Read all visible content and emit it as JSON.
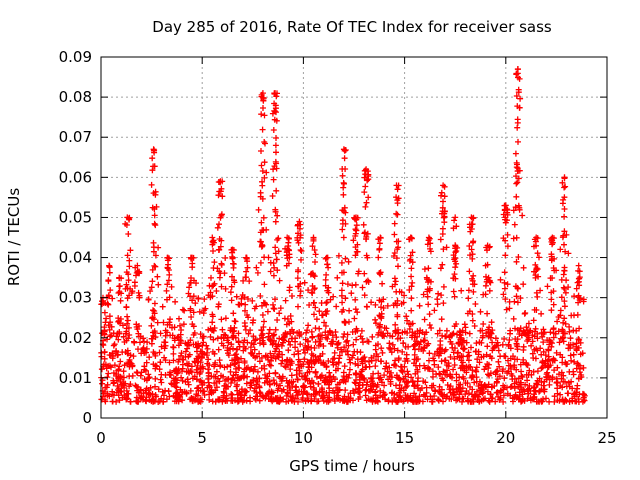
{
  "chart_data": {
    "type": "scatter",
    "title": "Day 285 of 2016, Rate Of TEC Index for receiver sass",
    "xlabel": "GPS time / hours",
    "ylabel": "ROTI / TECUs",
    "xlim": [
      0,
      25
    ],
    "ylim": [
      0,
      0.09
    ],
    "xticks": [
      0,
      5,
      10,
      15,
      20,
      25
    ],
    "xtick_labels": [
      "0",
      "5",
      "10",
      "15",
      "20",
      "25"
    ],
    "yticks": [
      0,
      0.01,
      0.02,
      0.03,
      0.04,
      0.05,
      0.06,
      0.07,
      0.08,
      0.09
    ],
    "ytick_labels": [
      "0",
      "0.01",
      "0.02",
      "0.03",
      "0.04",
      "0.05",
      "0.06",
      "0.07",
      "0.08",
      "0.09"
    ],
    "grid": true,
    "marker": "+",
    "marker_color": "#ff0000",
    "x_coverage_hours": [
      0,
      23.9
    ],
    "baseline_floor": 0.004,
    "dense_band_top": 0.022,
    "series": [
      {
        "name": "ROTI",
        "peaks": [
          {
            "x": 0.1,
            "y": 0.03
          },
          {
            "x": 0.4,
            "y": 0.038
          },
          {
            "x": 0.9,
            "y": 0.035
          },
          {
            "x": 1.3,
            "y": 0.05
          },
          {
            "x": 1.8,
            "y": 0.038
          },
          {
            "x": 2.6,
            "y": 0.067
          },
          {
            "x": 3.3,
            "y": 0.04
          },
          {
            "x": 4.5,
            "y": 0.04
          },
          {
            "x": 5.5,
            "y": 0.045
          },
          {
            "x": 5.9,
            "y": 0.059
          },
          {
            "x": 6.5,
            "y": 0.042
          },
          {
            "x": 7.2,
            "y": 0.04
          },
          {
            "x": 8.0,
            "y": 0.081
          },
          {
            "x": 8.6,
            "y": 0.081
          },
          {
            "x": 9.2,
            "y": 0.045
          },
          {
            "x": 9.8,
            "y": 0.049
          },
          {
            "x": 10.5,
            "y": 0.045
          },
          {
            "x": 11.2,
            "y": 0.04
          },
          {
            "x": 12.0,
            "y": 0.067
          },
          {
            "x": 12.6,
            "y": 0.05
          },
          {
            "x": 13.1,
            "y": 0.062
          },
          {
            "x": 13.8,
            "y": 0.045
          },
          {
            "x": 14.6,
            "y": 0.058
          },
          {
            "x": 15.3,
            "y": 0.045
          },
          {
            "x": 16.2,
            "y": 0.045
          },
          {
            "x": 16.9,
            "y": 0.058
          },
          {
            "x": 17.5,
            "y": 0.05
          },
          {
            "x": 18.3,
            "y": 0.05
          },
          {
            "x": 19.1,
            "y": 0.043
          },
          {
            "x": 20.0,
            "y": 0.053
          },
          {
            "x": 20.6,
            "y": 0.087
          },
          {
            "x": 21.5,
            "y": 0.045
          },
          {
            "x": 22.3,
            "y": 0.045
          },
          {
            "x": 22.9,
            "y": 0.06
          },
          {
            "x": 23.6,
            "y": 0.038
          }
        ]
      }
    ]
  }
}
